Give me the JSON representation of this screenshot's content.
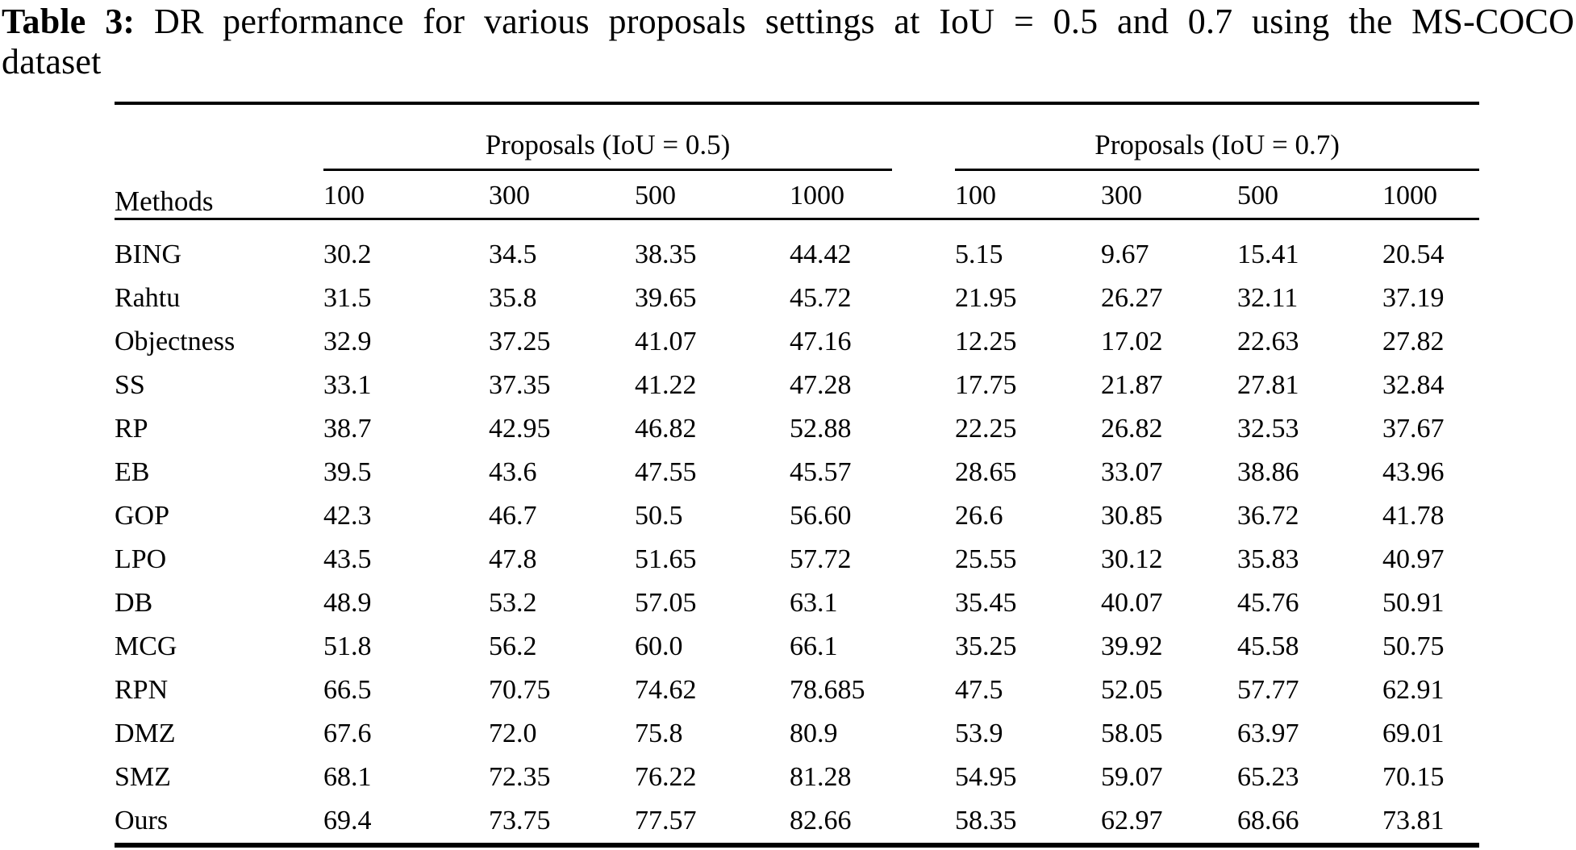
{
  "title": {
    "label": "Table 3:",
    "text_line1": "DR performance for various proposals settings at IoU = 0.5 and 0.7 using the MS-COCO",
    "text_line2": "dataset"
  },
  "table": {
    "methods_header": "Methods",
    "groups": [
      {
        "label": "Proposals (IoU = 0.5)",
        "columns": [
          "100",
          "300",
          "500",
          "1000"
        ]
      },
      {
        "label": "Proposals (IoU = 0.7)",
        "columns": [
          "100",
          "300",
          "500",
          "1000"
        ]
      }
    ],
    "rows": [
      {
        "method": "BING",
        "values": [
          "30.2",
          "34.5",
          "38.35",
          "44.42",
          "5.15",
          "9.67",
          "15.41",
          "20.54"
        ]
      },
      {
        "method": "Rahtu",
        "values": [
          "31.5",
          "35.8",
          "39.65",
          "45.72",
          "21.95",
          "26.27",
          "32.11",
          "37.19"
        ]
      },
      {
        "method": "Objectness",
        "values": [
          "32.9",
          "37.25",
          "41.07",
          "47.16",
          "12.25",
          "17.02",
          "22.63",
          "27.82"
        ]
      },
      {
        "method": "SS",
        "values": [
          "33.1",
          "37.35",
          "41.22",
          "47.28",
          "17.75",
          "21.87",
          "27.81",
          "32.84"
        ]
      },
      {
        "method": "RP",
        "values": [
          "38.7",
          "42.95",
          "46.82",
          "52.88",
          "22.25",
          "26.82",
          "32.53",
          "37.67"
        ]
      },
      {
        "method": "EB",
        "values": [
          "39.5",
          "43.6",
          "47.55",
          "45.57",
          "28.65",
          "33.07",
          "38.86",
          "43.96"
        ]
      },
      {
        "method": "GOP",
        "values": [
          "42.3",
          "46.7",
          "50.5",
          "56.60",
          "26.6",
          "30.85",
          "36.72",
          "41.78"
        ]
      },
      {
        "method": "LPO",
        "values": [
          "43.5",
          "47.8",
          "51.65",
          "57.72",
          "25.55",
          "30.12",
          "35.83",
          "40.97"
        ]
      },
      {
        "method": "DB",
        "values": [
          "48.9",
          "53.2",
          "57.05",
          "63.1",
          "35.45",
          "40.07",
          "45.76",
          "50.91"
        ]
      },
      {
        "method": "MCG",
        "values": [
          "51.8",
          "56.2",
          "60.0",
          "66.1",
          "35.25",
          "39.92",
          "45.58",
          "50.75"
        ]
      },
      {
        "method": "RPN",
        "values": [
          "66.5",
          "70.75",
          "74.62",
          "78.685",
          "47.5",
          "52.05",
          "57.77",
          "62.91"
        ]
      },
      {
        "method": "DMZ",
        "values": [
          "67.6",
          "72.0",
          "75.8",
          "80.9",
          "53.9",
          "58.05",
          "63.97",
          "69.01"
        ]
      },
      {
        "method": "SMZ",
        "values": [
          "68.1",
          "72.35",
          "76.22",
          "81.28",
          "54.95",
          "59.07",
          "65.23",
          "70.15"
        ]
      },
      {
        "method": "Ours",
        "values": [
          "69.4",
          "73.75",
          "77.57",
          "82.66",
          "58.35",
          "62.97",
          "68.66",
          "73.81"
        ]
      }
    ]
  }
}
